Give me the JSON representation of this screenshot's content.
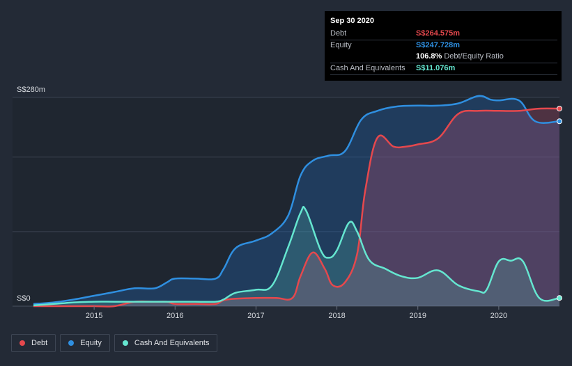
{
  "chart_data": {
    "type": "area",
    "y_axis_labels": [
      "S$280m",
      "S$0"
    ],
    "ylim": [
      0,
      280
    ],
    "xlim": [
      2014.25,
      2020.75
    ],
    "x_ticks": [
      2015,
      2016,
      2017,
      2018,
      2019,
      2020
    ],
    "grid": true,
    "legend_position": "bottom-left",
    "series": [
      {
        "name": "Equity",
        "color": "#2f8fe0",
        "points": [
          [
            2014.25,
            3
          ],
          [
            2014.5,
            5
          ],
          [
            2014.75,
            9
          ],
          [
            2015.0,
            14
          ],
          [
            2015.25,
            19
          ],
          [
            2015.5,
            24
          ],
          [
            2015.75,
            24
          ],
          [
            2015.9,
            32
          ],
          [
            2016.0,
            37
          ],
          [
            2016.25,
            37
          ],
          [
            2016.5,
            37
          ],
          [
            2016.6,
            50
          ],
          [
            2016.75,
            78
          ],
          [
            2017.0,
            88
          ],
          [
            2017.2,
            98
          ],
          [
            2017.4,
            122
          ],
          [
            2017.55,
            175
          ],
          [
            2017.7,
            195
          ],
          [
            2017.9,
            202
          ],
          [
            2018.1,
            208
          ],
          [
            2018.3,
            250
          ],
          [
            2018.5,
            262
          ],
          [
            2018.75,
            268
          ],
          [
            2019.0,
            269
          ],
          [
            2019.25,
            269
          ],
          [
            2019.5,
            272
          ],
          [
            2019.75,
            282
          ],
          [
            2019.9,
            277
          ],
          [
            2020.0,
            276
          ],
          [
            2020.25,
            276
          ],
          [
            2020.45,
            248
          ],
          [
            2020.75,
            248
          ]
        ]
      },
      {
        "name": "Debt",
        "color": "#e5484d",
        "points": [
          [
            2014.25,
            0
          ],
          [
            2014.5,
            0
          ],
          [
            2014.75,
            0
          ],
          [
            2015.0,
            0
          ],
          [
            2015.25,
            0
          ],
          [
            2015.5,
            6
          ],
          [
            2015.75,
            6
          ],
          [
            2015.9,
            6
          ],
          [
            2016.0,
            3
          ],
          [
            2016.25,
            3
          ],
          [
            2016.5,
            3
          ],
          [
            2016.6,
            8
          ],
          [
            2016.75,
            10
          ],
          [
            2017.0,
            11
          ],
          [
            2017.25,
            11
          ],
          [
            2017.45,
            11
          ],
          [
            2017.55,
            40
          ],
          [
            2017.7,
            72
          ],
          [
            2017.85,
            50
          ],
          [
            2017.95,
            28
          ],
          [
            2018.1,
            32
          ],
          [
            2018.25,
            70
          ],
          [
            2018.35,
            155
          ],
          [
            2018.5,
            226
          ],
          [
            2018.7,
            214
          ],
          [
            2018.85,
            214
          ],
          [
            2019.0,
            217
          ],
          [
            2019.25,
            225
          ],
          [
            2019.5,
            258
          ],
          [
            2019.75,
            262
          ],
          [
            2020.0,
            262
          ],
          [
            2020.25,
            262
          ],
          [
            2020.5,
            265
          ],
          [
            2020.75,
            265
          ]
        ]
      },
      {
        "name": "Cash And Equivalents",
        "color": "#65e6d0",
        "points": [
          [
            2014.25,
            1
          ],
          [
            2014.5,
            3
          ],
          [
            2014.75,
            5
          ],
          [
            2015.0,
            6
          ],
          [
            2015.25,
            6
          ],
          [
            2015.5,
            6
          ],
          [
            2015.75,
            6
          ],
          [
            2016.0,
            6
          ],
          [
            2016.25,
            6
          ],
          [
            2016.5,
            6
          ],
          [
            2016.6,
            9
          ],
          [
            2016.75,
            18
          ],
          [
            2017.0,
            22
          ],
          [
            2017.2,
            28
          ],
          [
            2017.4,
            80
          ],
          [
            2017.55,
            125
          ],
          [
            2017.62,
            128
          ],
          [
            2017.8,
            75
          ],
          [
            2017.9,
            65
          ],
          [
            2018.0,
            75
          ],
          [
            2018.15,
            112
          ],
          [
            2018.25,
            100
          ],
          [
            2018.4,
            62
          ],
          [
            2018.6,
            50
          ],
          [
            2018.8,
            40
          ],
          [
            2019.0,
            38
          ],
          [
            2019.25,
            48
          ],
          [
            2019.5,
            28
          ],
          [
            2019.75,
            20
          ],
          [
            2019.85,
            22
          ],
          [
            2020.0,
            60
          ],
          [
            2020.15,
            61
          ],
          [
            2020.3,
            60
          ],
          [
            2020.5,
            11
          ],
          [
            2020.75,
            11
          ]
        ]
      }
    ]
  },
  "tooltip": {
    "date": "Sep 30 2020",
    "rows": [
      {
        "label": "Debt",
        "value": "S$264.575m",
        "color": "#e5484d"
      },
      {
        "label": "Equity",
        "value": "S$247.728m",
        "color": "#2f8fe0"
      },
      {
        "label": "",
        "value": "106.8%",
        "extra": "Debt/Equity Ratio",
        "color": "#ffffff"
      },
      {
        "label": "Cash And Equivalents",
        "value": "S$11.076m",
        "color": "#65e6d0"
      }
    ]
  },
  "legend": [
    {
      "label": "Debt",
      "color": "#e5484d"
    },
    {
      "label": "Equity",
      "color": "#2f8fe0"
    },
    {
      "label": "Cash And Equivalents",
      "color": "#65e6d0"
    }
  ]
}
